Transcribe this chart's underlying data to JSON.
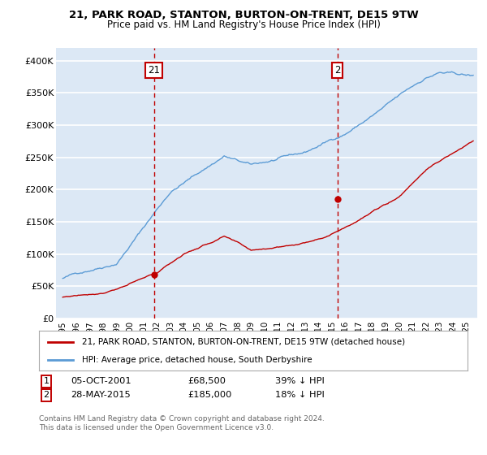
{
  "title": "21, PARK ROAD, STANTON, BURTON-ON-TRENT, DE15 9TW",
  "subtitle": "Price paid vs. HM Land Registry's House Price Index (HPI)",
  "ylim": [
    0,
    420000
  ],
  "yticks": [
    0,
    50000,
    100000,
    150000,
    200000,
    250000,
    300000,
    350000,
    400000
  ],
  "ytick_labels": [
    "£0",
    "£50K",
    "£100K",
    "£150K",
    "£200K",
    "£250K",
    "£300K",
    "£350K",
    "£400K"
  ],
  "bg_color": "#dce8f5",
  "grid_color": "#ffffff",
  "line_color_hpi": "#5b9bd5",
  "line_color_price": "#c00000",
  "sale1_year": 2001.77,
  "sale1_price": 68500,
  "sale1_date": "05-OCT-2001",
  "sale1_pct": "39%",
  "sale2_year": 2015.41,
  "sale2_price": 185000,
  "sale2_date": "28-MAY-2015",
  "sale2_pct": "18%",
  "legend_price": "21, PARK ROAD, STANTON, BURTON-ON-TRENT, DE15 9TW (detached house)",
  "legend_hpi": "HPI: Average price, detached house, South Derbyshire",
  "footer1": "Contains HM Land Registry data © Crown copyright and database right 2024.",
  "footer2": "This data is licensed under the Open Government Licence v3.0."
}
